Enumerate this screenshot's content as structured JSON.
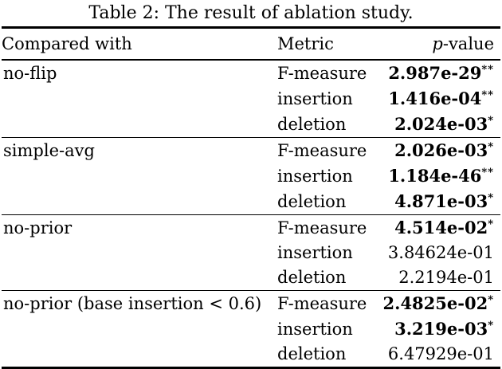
{
  "caption": "Table 2: The result of ablation study.",
  "table": {
    "headers": {
      "compared_with": "Compared with",
      "metric": "Metric",
      "p_italic": "p",
      "p_suffix": "-value"
    },
    "groups": [
      {
        "compared_with": "no-flip",
        "rows": [
          {
            "metric": "F-measure",
            "value": "2.987e-29",
            "stars": "**",
            "bold": true
          },
          {
            "metric": "insertion",
            "value": "1.416e-04",
            "stars": "**",
            "bold": true
          },
          {
            "metric": "deletion",
            "value": "2.024e-03",
            "stars": "*",
            "bold": true
          }
        ]
      },
      {
        "compared_with": "simple-avg",
        "rows": [
          {
            "metric": "F-measure",
            "value": "2.026e-03",
            "stars": "*",
            "bold": true
          },
          {
            "metric": "insertion",
            "value": "1.184e-46",
            "stars": "**",
            "bold": true
          },
          {
            "metric": "deletion",
            "value": "4.871e-03",
            "stars": "*",
            "bold": true
          }
        ]
      },
      {
        "compared_with": "no-prior",
        "rows": [
          {
            "metric": "F-measure",
            "value": "4.514e-02",
            "stars": "*",
            "bold": true
          },
          {
            "metric": "insertion",
            "value": "3.84624e-01",
            "stars": "",
            "bold": false
          },
          {
            "metric": "deletion",
            "value": "2.2194e-01",
            "stars": "",
            "bold": false
          }
        ]
      },
      {
        "compared_with": "no-prior (base insertion < 0.6)",
        "rows": [
          {
            "metric": "F-measure",
            "value": "2.4825e-02",
            "stars": "*",
            "bold": true
          },
          {
            "metric": "insertion",
            "value": "3.219e-03",
            "stars": "*",
            "bold": true
          },
          {
            "metric": "deletion",
            "value": "6.47929e-01",
            "stars": "",
            "bold": false
          }
        ]
      }
    ]
  },
  "colors": {
    "text": "#000000",
    "background": "#ffffff",
    "rule": "#000000"
  }
}
